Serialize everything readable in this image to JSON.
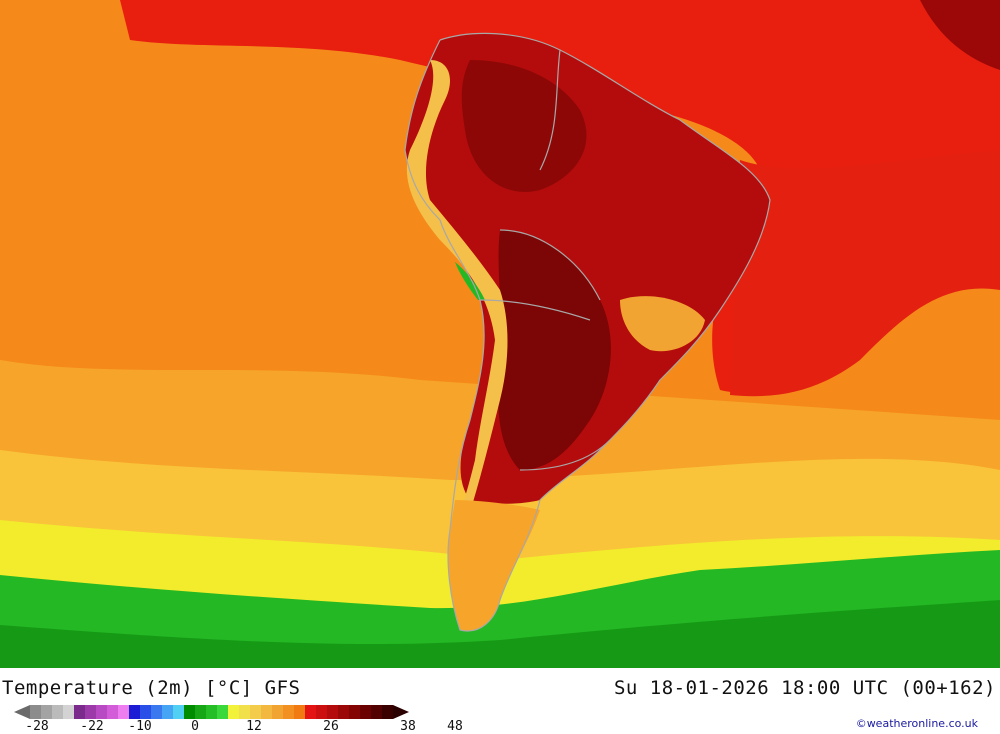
{
  "header": {
    "title": "Temperature (2m) [°C] GFS",
    "datetime": "Su 18-01-2026 18:00 UTC (00+162)"
  },
  "credit": "©weatheronline.co.uk",
  "legend": {
    "ticks": [
      "-28",
      "-22",
      "-10",
      "0",
      "12",
      "26",
      "38",
      "48"
    ],
    "colors": [
      "#8c8c8c",
      "#a3a3a3",
      "#bbbbbb",
      "#d3d3d3",
      "#7b2b8c",
      "#9b3aa8",
      "#b84bc4",
      "#d35dd9",
      "#ee7ef0",
      "#1c1cd4",
      "#2a4ee8",
      "#3a78f0",
      "#45a4f4",
      "#52d0f4",
      "#008c00",
      "#16a616",
      "#26be26",
      "#3ad83a",
      "#f2f23a",
      "#f2e04a",
      "#f2cc4a",
      "#f2b840",
      "#f2a432",
      "#f29022",
      "#f27a12",
      "#e41414",
      "#cc1010",
      "#b40c0c",
      "#9c0808",
      "#840404",
      "#6a0000",
      "#520000",
      "#3a0000"
    ]
  },
  "map": {
    "region": "South America",
    "field": "2m temperature",
    "colors": {
      "ocean_warm": "#f58a1a",
      "ocean_mild": "#f7a52a",
      "ocean_cool": "#f9c43a",
      "ocean_cold": "#f2ec2c",
      "antarctic_green": "#24b824",
      "antarctic_dark": "#169a16",
      "equatorial_red": "#e81f0f",
      "land_hot": "#b40c0c",
      "land_very_hot": "#7c0505",
      "andes_cool": "#f5c04a",
      "border": "#a8a8a8"
    }
  }
}
